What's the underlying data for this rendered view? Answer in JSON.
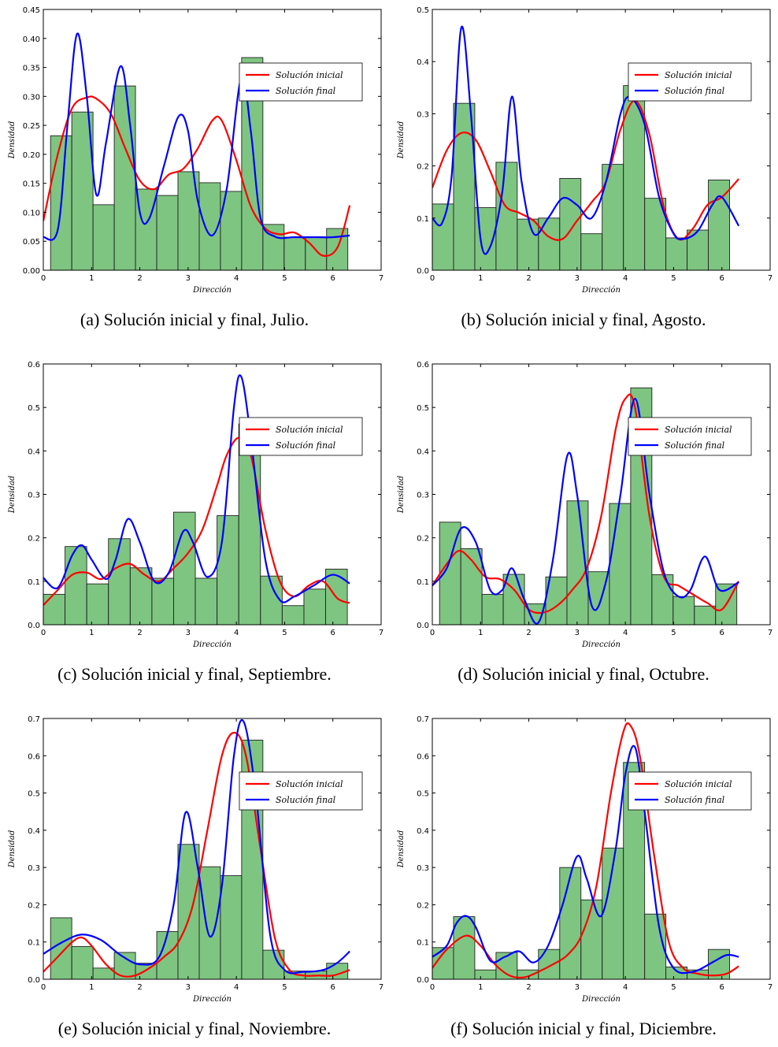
{
  "chart_data": [
    {
      "id": "a",
      "type": "bar+line",
      "caption": "(a) Solución inicial y final, Julio.",
      "xlabel": "Dirección",
      "ylabel": "Densidad",
      "xlim": [
        0,
        7
      ],
      "ylim": [
        0,
        0.45
      ],
      "xticks": [
        "0",
        "1",
        "2",
        "3",
        "4",
        "5",
        "6",
        "7"
      ],
      "yticks": [
        "0.00",
        "0.05",
        "0.10",
        "0.15",
        "0.20",
        "0.25",
        "0.30",
        "0.35",
        "0.40",
        "0.45"
      ],
      "bin_start": 0.15,
      "bin_width": 0.44,
      "bars": [
        0.232,
        0.273,
        0.113,
        0.318,
        0.14,
        0.129,
        0.17,
        0.151,
        0.136,
        0.367,
        0.079,
        0.057,
        0.057,
        0.072
      ],
      "series": [
        {
          "name": "Solución inicial",
          "color": "#ff0000",
          "x": [
            0,
            0.3,
            0.6,
            0.9,
            1.1,
            1.4,
            1.7,
            2.0,
            2.3,
            2.6,
            2.9,
            3.2,
            3.5,
            3.7,
            4.0,
            4.3,
            4.6,
            4.9,
            5.2,
            5.5,
            5.8,
            6.1,
            6.35
          ],
          "y": [
            0.085,
            0.2,
            0.28,
            0.298,
            0.296,
            0.27,
            0.21,
            0.155,
            0.14,
            0.165,
            0.175,
            0.21,
            0.258,
            0.258,
            0.19,
            0.11,
            0.072,
            0.062,
            0.065,
            0.048,
            0.025,
            0.04,
            0.112
          ]
        },
        {
          "name": "Solución final",
          "color": "#0000ff",
          "x": [
            0,
            0.3,
            0.5,
            0.7,
            0.9,
            1.1,
            1.3,
            1.6,
            1.8,
            2.0,
            2.2,
            2.5,
            2.8,
            3.0,
            3.2,
            3.5,
            3.8,
            4.1,
            4.3,
            4.5,
            4.8,
            5.2,
            5.6,
            6.0,
            6.35
          ],
          "y": [
            0.057,
            0.07,
            0.25,
            0.408,
            0.3,
            0.13,
            0.22,
            0.352,
            0.25,
            0.1,
            0.09,
            0.18,
            0.265,
            0.24,
            0.12,
            0.06,
            0.14,
            0.332,
            0.24,
            0.09,
            0.058,
            0.057,
            0.057,
            0.057,
            0.06
          ]
        }
      ]
    },
    {
      "id": "b",
      "type": "bar+line",
      "caption": "(b) Solución inicial y final, Agosto.",
      "xlabel": "Dirección",
      "ylabel": "Densidad",
      "xlim": [
        0,
        7
      ],
      "ylim": [
        0,
        0.5
      ],
      "xticks": [
        "0",
        "1",
        "2",
        "3",
        "4",
        "5",
        "6",
        "7"
      ],
      "yticks": [
        "0.0",
        "0.1",
        "0.2",
        "0.3",
        "0.4",
        "0.5"
      ],
      "bin_start": 0.0,
      "bin_width": 0.44,
      "bars": [
        0.127,
        0.32,
        0.12,
        0.207,
        0.098,
        0.1,
        0.176,
        0.07,
        0.203,
        0.354,
        0.138,
        0.062,
        0.077,
        0.173
      ],
      "series": [
        {
          "name": "Solución inicial",
          "color": "#ff0000",
          "x": [
            0,
            0.3,
            0.6,
            0.9,
            1.2,
            1.5,
            1.8,
            2.1,
            2.4,
            2.7,
            3.0,
            3.3,
            3.6,
            3.9,
            4.2,
            4.5,
            4.8,
            5.1,
            5.4,
            5.7,
            6.0,
            6.35
          ],
          "y": [
            0.158,
            0.23,
            0.263,
            0.25,
            0.19,
            0.125,
            0.11,
            0.095,
            0.065,
            0.06,
            0.095,
            0.13,
            0.17,
            0.27,
            0.325,
            0.26,
            0.12,
            0.06,
            0.08,
            0.125,
            0.14,
            0.175
          ]
        },
        {
          "name": "Solución final",
          "color": "#0000ff",
          "x": [
            0,
            0.2,
            0.4,
            0.6,
            0.8,
            1.0,
            1.2,
            1.45,
            1.65,
            1.85,
            2.1,
            2.4,
            2.7,
            3.0,
            3.3,
            3.6,
            3.9,
            4.1,
            4.4,
            4.7,
            5.0,
            5.2,
            5.5,
            5.8,
            6.0,
            6.35
          ],
          "y": [
            0.1,
            0.09,
            0.18,
            0.465,
            0.3,
            0.06,
            0.045,
            0.15,
            0.333,
            0.17,
            0.07,
            0.1,
            0.138,
            0.125,
            0.1,
            0.17,
            0.3,
            0.332,
            0.28,
            0.14,
            0.07,
            0.06,
            0.075,
            0.125,
            0.14,
            0.085
          ]
        }
      ]
    },
    {
      "id": "c",
      "type": "bar+line",
      "caption": "(c) Solución inicial y final, Septiembre.",
      "xlabel": "Dirección",
      "ylabel": "Densidad",
      "xlim": [
        0,
        7
      ],
      "ylim": [
        0,
        0.6
      ],
      "xticks": [
        "0",
        "1",
        "2",
        "3",
        "4",
        "5",
        "6",
        "7"
      ],
      "yticks": [
        "0.0",
        "0.1",
        "0.2",
        "0.3",
        "0.4",
        "0.5",
        "0.6"
      ],
      "bin_start": 0.0,
      "bin_width": 0.45,
      "bars": [
        0.07,
        0.18,
        0.094,
        0.198,
        0.131,
        0.107,
        0.259,
        0.107,
        0.251,
        0.462,
        0.112,
        0.044,
        0.082,
        0.128
      ],
      "series": [
        {
          "name": "Solución inicial",
          "color": "#ff0000",
          "x": [
            0,
            0.3,
            0.6,
            0.9,
            1.2,
            1.5,
            1.8,
            2.1,
            2.4,
            2.7,
            3.0,
            3.3,
            3.6,
            3.8,
            4.05,
            4.3,
            4.6,
            4.9,
            5.2,
            5.5,
            5.8,
            6.1,
            6.35
          ],
          "y": [
            0.045,
            0.08,
            0.115,
            0.12,
            0.105,
            0.13,
            0.14,
            0.115,
            0.1,
            0.13,
            0.165,
            0.22,
            0.32,
            0.39,
            0.43,
            0.39,
            0.22,
            0.1,
            0.065,
            0.09,
            0.1,
            0.06,
            0.05
          ]
        },
        {
          "name": "Solución final",
          "color": "#0000ff",
          "x": [
            0,
            0.3,
            0.6,
            0.8,
            1.0,
            1.3,
            1.5,
            1.75,
            2.0,
            2.3,
            2.6,
            2.9,
            3.1,
            3.4,
            3.7,
            3.95,
            4.1,
            4.3,
            4.6,
            4.9,
            5.2,
            5.6,
            6.0,
            6.35
          ],
          "y": [
            0.108,
            0.085,
            0.16,
            0.183,
            0.15,
            0.105,
            0.15,
            0.243,
            0.19,
            0.1,
            0.12,
            0.215,
            0.19,
            0.11,
            0.19,
            0.5,
            0.571,
            0.43,
            0.15,
            0.057,
            0.065,
            0.09,
            0.115,
            0.095
          ]
        }
      ]
    },
    {
      "id": "d",
      "type": "bar+line",
      "caption": "(d) Solución inicial y final, Octubre.",
      "xlabel": "Dirección",
      "ylabel": "Densidad",
      "xlim": [
        0,
        7
      ],
      "ylim": [
        0,
        0.6
      ],
      "xticks": [
        "0",
        "1",
        "2",
        "3",
        "4",
        "5",
        "6",
        "7"
      ],
      "yticks": [
        "0.0",
        "0.1",
        "0.2",
        "0.3",
        "0.4",
        "0.5",
        "0.6"
      ],
      "bin_start": 0.15,
      "bin_width": 0.44,
      "bars": [
        0.236,
        0.175,
        0.07,
        0.116,
        0.048,
        0.11,
        0.285,
        0.122,
        0.279,
        0.545,
        0.115,
        0.065,
        0.043,
        0.094
      ],
      "series": [
        {
          "name": "Solución inicial",
          "color": "#ff0000",
          "x": [
            0,
            0.3,
            0.55,
            0.8,
            1.1,
            1.4,
            1.7,
            2.0,
            2.3,
            2.6,
            2.9,
            3.2,
            3.5,
            3.8,
            4.0,
            4.2,
            4.5,
            4.8,
            5.1,
            5.4,
            5.7,
            6.0,
            6.35
          ],
          "y": [
            0.09,
            0.14,
            0.17,
            0.15,
            0.11,
            0.105,
            0.08,
            0.035,
            0.028,
            0.045,
            0.08,
            0.13,
            0.25,
            0.45,
            0.52,
            0.5,
            0.25,
            0.11,
            0.09,
            0.07,
            0.05,
            0.035,
            0.1
          ]
        },
        {
          "name": "Solución final",
          "color": "#0000ff",
          "x": [
            0,
            0.3,
            0.6,
            0.9,
            1.2,
            1.45,
            1.65,
            1.9,
            2.2,
            2.5,
            2.8,
            3.0,
            3.3,
            3.6,
            3.9,
            4.2,
            4.5,
            4.8,
            5.1,
            5.35,
            5.65,
            5.95,
            6.35
          ],
          "y": [
            0.09,
            0.13,
            0.222,
            0.19,
            0.08,
            0.08,
            0.13,
            0.06,
            0.005,
            0.15,
            0.39,
            0.3,
            0.045,
            0.1,
            0.3,
            0.52,
            0.3,
            0.12,
            0.065,
            0.08,
            0.157,
            0.08,
            0.098
          ]
        }
      ]
    },
    {
      "id": "e",
      "type": "bar+line",
      "caption": "(e) Solución inicial y final, Noviembre.",
      "xlabel": "Dirección",
      "ylabel": "Densidad",
      "xlim": [
        0,
        7
      ],
      "ylim": [
        0,
        0.7
      ],
      "xticks": [
        "0",
        "1",
        "2",
        "3",
        "4",
        "5",
        "6",
        "7"
      ],
      "yticks": [
        "0.0",
        "0.1",
        "0.2",
        "0.3",
        "0.4",
        "0.5",
        "0.6",
        "0.7"
      ],
      "bin_start": 0.15,
      "bin_width": 0.44,
      "bars": [
        0.165,
        0.088,
        0.03,
        0.072,
        0.043,
        0.128,
        0.362,
        0.302,
        0.278,
        0.642,
        0.078,
        0.022,
        0.022,
        0.043
      ],
      "series": [
        {
          "name": "Solución inicial",
          "color": "#ff0000",
          "x": [
            0,
            0.3,
            0.6,
            0.8,
            1.0,
            1.3,
            1.6,
            1.9,
            2.2,
            2.5,
            2.8,
            3.1,
            3.4,
            3.7,
            3.95,
            4.2,
            4.5,
            4.8,
            5.1,
            5.4,
            5.7,
            6.0,
            6.35
          ],
          "y": [
            0.02,
            0.06,
            0.1,
            0.112,
            0.09,
            0.04,
            0.01,
            0.01,
            0.03,
            0.06,
            0.1,
            0.2,
            0.4,
            0.6,
            0.662,
            0.6,
            0.35,
            0.11,
            0.025,
            0.01,
            0.01,
            0.01,
            0.025
          ]
        },
        {
          "name": "Solución final",
          "color": "#0000ff",
          "x": [
            0,
            0.4,
            0.8,
            1.2,
            1.6,
            2.0,
            2.4,
            2.7,
            2.95,
            3.2,
            3.45,
            3.7,
            3.95,
            4.15,
            4.4,
            4.7,
            5.0,
            5.4,
            5.8,
            6.1,
            6.35
          ],
          "y": [
            0.068,
            0.1,
            0.12,
            0.105,
            0.065,
            0.04,
            0.06,
            0.2,
            0.448,
            0.3,
            0.115,
            0.25,
            0.6,
            0.692,
            0.5,
            0.12,
            0.025,
            0.02,
            0.025,
            0.045,
            0.075
          ]
        }
      ]
    },
    {
      "id": "f",
      "type": "bar+line",
      "caption": "(f) Solución inicial y final, Diciembre.",
      "xlabel": "Dirección",
      "ylabel": "Densidad",
      "xlim": [
        0,
        7
      ],
      "ylim": [
        0,
        0.7
      ],
      "xticks": [
        "0",
        "1",
        "2",
        "3",
        "4",
        "5",
        "6",
        "7"
      ],
      "yticks": [
        "0.0",
        "0.1",
        "0.2",
        "0.3",
        "0.4",
        "0.5",
        "0.6",
        "0.7"
      ],
      "bin_start": 0.0,
      "bin_width": 0.44,
      "bars": [
        0.085,
        0.168,
        0.025,
        0.072,
        0.025,
        0.08,
        0.3,
        0.213,
        0.352,
        0.582,
        0.175,
        0.033,
        0.025,
        0.08
      ],
      "series": [
        {
          "name": "Solución inicial",
          "color": "#ff0000",
          "x": [
            0,
            0.3,
            0.7,
            1.0,
            1.3,
            1.6,
            1.9,
            2.2,
            2.5,
            2.8,
            3.1,
            3.4,
            3.7,
            3.95,
            4.1,
            4.3,
            4.6,
            4.9,
            5.2,
            5.5,
            5.8,
            6.1,
            6.35
          ],
          "y": [
            0.03,
            0.08,
            0.117,
            0.09,
            0.04,
            0.01,
            0.005,
            0.02,
            0.04,
            0.065,
            0.12,
            0.25,
            0.5,
            0.66,
            0.682,
            0.6,
            0.33,
            0.1,
            0.03,
            0.015,
            0.01,
            0.015,
            0.035
          ]
        },
        {
          "name": "Solución final",
          "color": "#0000ff",
          "x": [
            0,
            0.3,
            0.5,
            0.7,
            0.9,
            1.2,
            1.5,
            1.8,
            2.1,
            2.4,
            2.7,
            3.0,
            3.2,
            3.5,
            3.8,
            4.0,
            4.2,
            4.4,
            4.7,
            5.0,
            5.4,
            5.8,
            6.1,
            6.35
          ],
          "y": [
            0.06,
            0.09,
            0.15,
            0.17,
            0.14,
            0.05,
            0.06,
            0.075,
            0.045,
            0.09,
            0.2,
            0.33,
            0.27,
            0.17,
            0.35,
            0.55,
            0.623,
            0.45,
            0.14,
            0.03,
            0.02,
            0.045,
            0.065,
            0.06
          ]
        }
      ]
    }
  ]
}
